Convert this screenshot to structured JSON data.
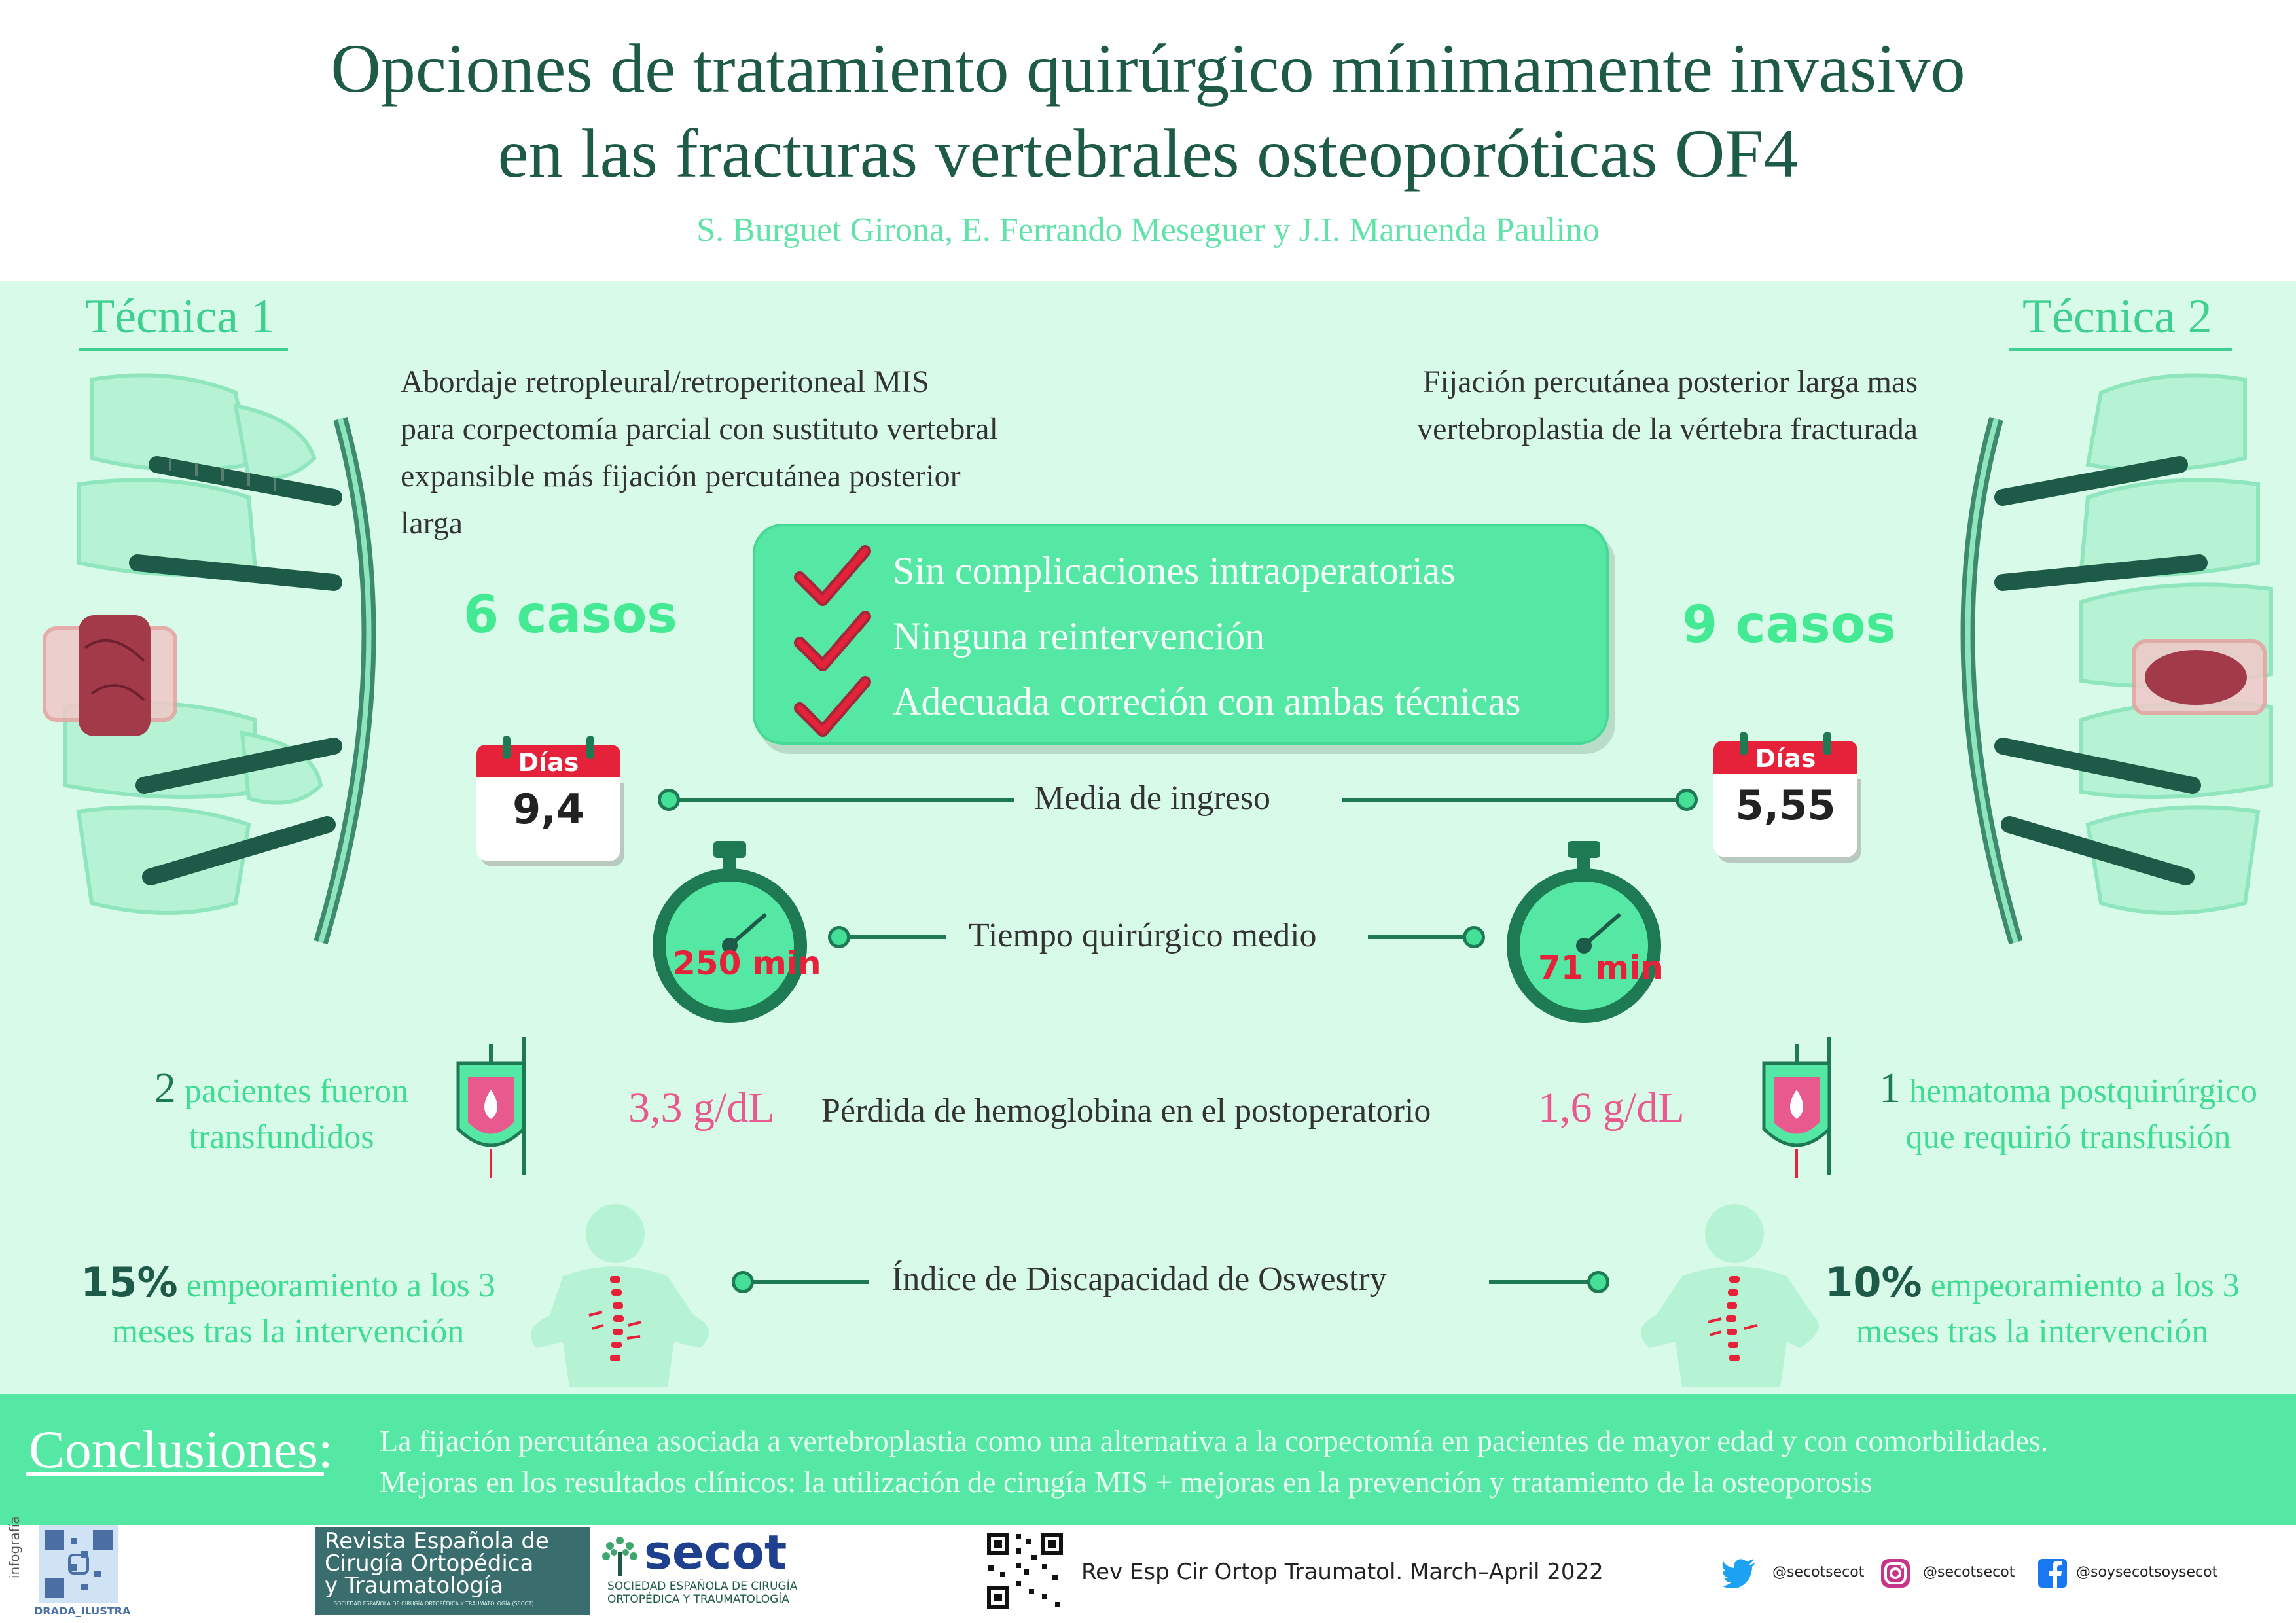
{
  "header": {
    "title_line1": "Opciones de tratamiento quirúrgico mínimamente invasivo",
    "title_line2": "en las fracturas vertebrales osteoporóticas OF4",
    "authors": "S. Burguet Girona, E. Ferrando Meseguer y J.I. Maruenda Paulino"
  },
  "technique1": {
    "title": "Técnica 1",
    "description": [
      "Abordaje retropleural/retroperitoneal MIS",
      "para corpectomía parcial con sustituto vertebral",
      "expansible más fijación percutánea posterior",
      "larga"
    ],
    "cases": "6 casos",
    "days_label": "Días",
    "days": "9,4",
    "surgery_time": "250 min",
    "transfusion_num": "2",
    "transfusion_text_1": "pacientes fueron",
    "transfusion_text_2": "transfundidos",
    "hb_loss": "3,3 g/dL",
    "odi_pct": "15%",
    "odi_text_1": "empeoramiento a los 3",
    "odi_text_2": "meses tras la intervención"
  },
  "technique2": {
    "title": "Técnica 2",
    "description": [
      "Fijación percutánea posterior larga mas",
      "vertebroplastia de la vértebra fracturada"
    ],
    "cases": "9 casos",
    "days_label": "Días",
    "days": "5,55",
    "surgery_time": "71 min",
    "transfusion_num": "1",
    "transfusion_text_1": "hematoma postquirúrgico",
    "transfusion_text_2": "que requirió transfusión",
    "hb_loss": "1,6 g/dL",
    "odi_pct": "10%",
    "odi_text_1": "empeoramiento a los 3",
    "odi_text_2": "meses tras la intervención"
  },
  "checklist": [
    "Sin complicaciones intraoperatorias",
    "Ninguna reintervención",
    "Adecuada correción con ambas técnicas"
  ],
  "metrics": {
    "stay": "Media de ingreso",
    "surgery": "Tiempo quirúrgico medio",
    "hb": "Pérdida de hemoglobina en el postoperatorio",
    "odi": "Índice de Discapacidad de Oswestry"
  },
  "conclusions": {
    "title": "Conclusiones:",
    "line1": "La fijación percutánea asociada a vertebroplastia como una alternativa a la corpectomía en pacientes de mayor edad y con comorbilidades.",
    "line2": "Mejoras en los resultados clínicos: la utilización de cirugía MIS + mejoras en la prevención y tratamiento de la osteoporosis"
  },
  "footer": {
    "infografia": "infografía",
    "illustrator": "DRADA_ILUSTRA",
    "journal_line1": "Revista Española de",
    "journal_line2": "Cirugía Ortopédica",
    "journal_line3": "y Traumatología",
    "journal_small": "SOCIEDAD ESPAÑOLA DE CIRUGÍA ORTOPÉDICA Y TRAUMATOLOGÍA (SECOT)",
    "secot": "secot",
    "secot_sub1": "SOCIEDAD ESPAÑOLA DE CIRUGÍA",
    "secot_sub2": "ORTOPÉDICA Y TRAUMATOLOGÍA",
    "citation": "Rev Esp Cir Ortop Traumatol. March–April 2022",
    "twitter": "@secotsecot",
    "instagram": "@secotsecot",
    "facebook": "@soysecotsoysecot"
  },
  "colors": {
    "title": "#1e5a48",
    "accent": "#55e8a4",
    "panel": "#d8fae9",
    "red": "#e6213a",
    "pink": "#e8598d"
  },
  "icons": [
    "spine-implant-icon",
    "check-icon",
    "calendar-icon",
    "stopwatch-icon",
    "blood-bag-icon",
    "back-pain-icon",
    "qr-code-icon",
    "twitter-icon",
    "instagram-icon",
    "facebook-icon"
  ]
}
